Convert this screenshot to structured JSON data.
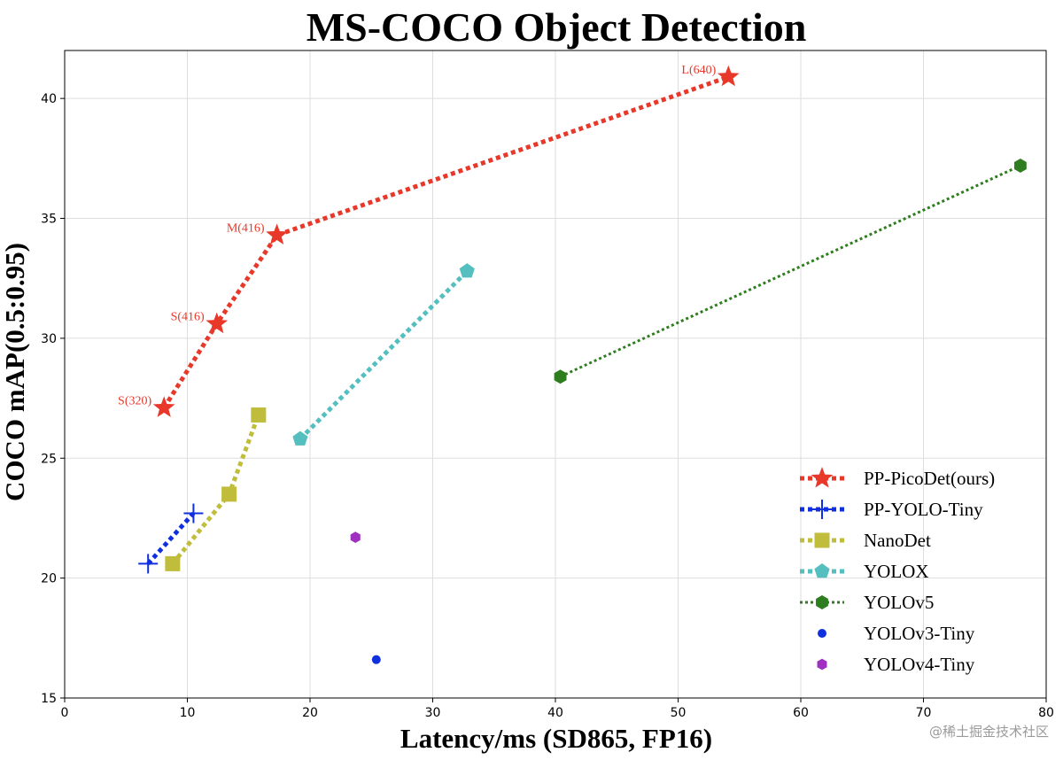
{
  "chart_data": {
    "type": "scatter",
    "title": "MS-COCO Object Detection",
    "xlabel": "Latency/ms (SD865, FP16)",
    "ylabel": "COCO mAP(0.5:0.95)",
    "xlim": [
      0,
      80
    ],
    "ylim": [
      15,
      42
    ],
    "xticks": [
      0,
      10,
      20,
      30,
      40,
      50,
      60,
      70,
      80
    ],
    "yticks": [
      15,
      20,
      25,
      30,
      35,
      40
    ],
    "grid": true,
    "legend_position": "lower-right",
    "series": [
      {
        "name": "PP-PicoDet(ours)",
        "color": "#e8382a",
        "marker": "star",
        "line": "dotted",
        "points": [
          {
            "x": 8.1,
            "y": 27.1,
            "label": "S(320)"
          },
          {
            "x": 12.4,
            "y": 30.6,
            "label": "S(416)"
          },
          {
            "x": 17.3,
            "y": 34.3,
            "label": "M(416)"
          },
          {
            "x": 54.1,
            "y": 40.9,
            "label": "L(640)"
          }
        ]
      },
      {
        "name": "PP-YOLO-Tiny",
        "color": "#1030e0",
        "marker": "plus",
        "line": "dotted",
        "points": [
          {
            "x": 6.8,
            "y": 20.6
          },
          {
            "x": 10.5,
            "y": 22.7
          }
        ]
      },
      {
        "name": "NanoDet",
        "color": "#c0bd3c",
        "marker": "square",
        "line": "dotted",
        "points": [
          {
            "x": 8.8,
            "y": 20.6
          },
          {
            "x": 13.4,
            "y": 23.5
          },
          {
            "x": 15.8,
            "y": 26.8
          }
        ]
      },
      {
        "name": "YOLOX",
        "color": "#55bfbf",
        "marker": "pentagon",
        "line": "dotted",
        "points": [
          {
            "x": 19.2,
            "y": 25.8
          },
          {
            "x": 32.8,
            "y": 32.8
          }
        ]
      },
      {
        "name": "YOLOv5",
        "color": "#2e7d1e",
        "marker": "hexagon",
        "line": "dotted-thin",
        "points": [
          {
            "x": 40.4,
            "y": 28.4
          },
          {
            "x": 77.9,
            "y": 37.2
          }
        ]
      },
      {
        "name": "YOLOv3-Tiny",
        "color": "#1030e0",
        "marker": "circle",
        "line": "none",
        "points": [
          {
            "x": 25.4,
            "y": 16.6
          }
        ]
      },
      {
        "name": "YOLOv4-Tiny",
        "color": "#a030c0",
        "marker": "hexagon",
        "line": "none",
        "points": [
          {
            "x": 23.7,
            "y": 21.7
          }
        ]
      }
    ]
  },
  "watermark": "@稀土掘金技术社区"
}
